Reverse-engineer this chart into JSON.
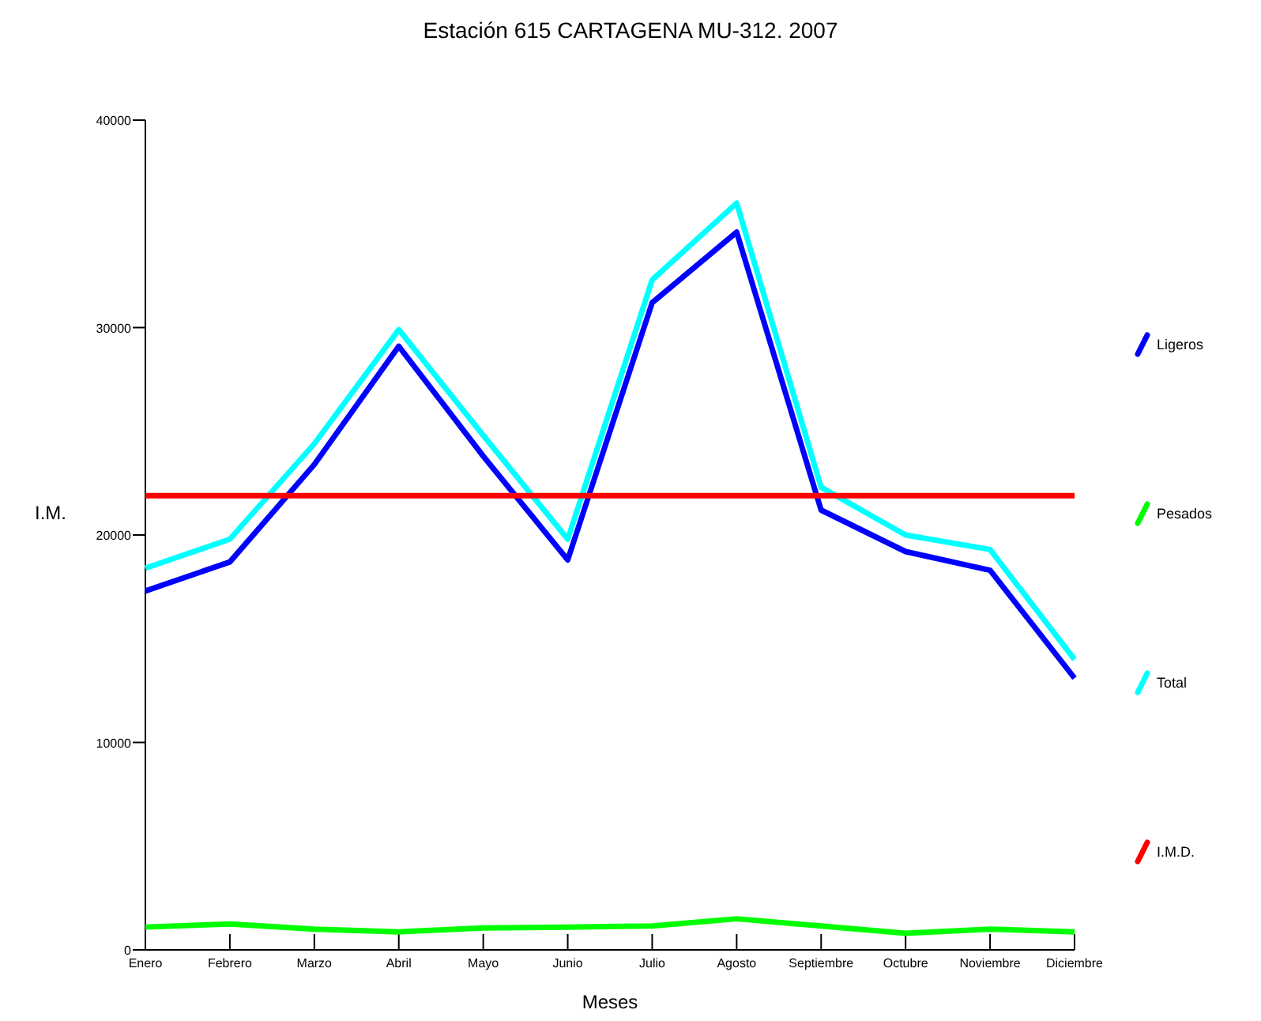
{
  "chart_data": {
    "type": "line",
    "title": "Estación 615   CARTAGENA  MU-312. 2007",
    "xlabel": "Meses",
    "ylabel": "I.M.",
    "categories": [
      "Enero",
      "Febrero",
      "Marzo",
      "Abril",
      "Mayo",
      "Junio",
      "Julio",
      "Agosto",
      "Septiembre",
      "Octubre",
      "Noviembre",
      "Diciembre"
    ],
    "series": [
      {
        "name": "Ligeros",
        "color": "#0000ff",
        "values": [
          17300,
          18700,
          23400,
          29100,
          23800,
          18800,
          31200,
          34600,
          21200,
          19200,
          18300,
          13100
        ]
      },
      {
        "name": "Pesados",
        "color": "#00ff00",
        "values": [
          1100,
          1250,
          1000,
          870,
          1060,
          1100,
          1150,
          1500,
          1150,
          800,
          1000,
          870
        ]
      },
      {
        "name": "Total",
        "color": "#00ffff",
        "values": [
          18400,
          19800,
          24400,
          29900,
          24800,
          19800,
          32300,
          36000,
          22300,
          20000,
          19300,
          14000
        ]
      },
      {
        "name": "I.M.D.",
        "color": "#ff0000",
        "values": [
          21900,
          21900,
          21900,
          21900,
          21900,
          21900,
          21900,
          21900,
          21900,
          21900,
          21900,
          21900
        ]
      }
    ],
    "ylim": [
      0,
      40000
    ],
    "yticks": [
      0,
      10000,
      20000,
      30000,
      40000
    ],
    "grid": false,
    "legend": "right",
    "marker": "none",
    "line_style": "solid"
  }
}
